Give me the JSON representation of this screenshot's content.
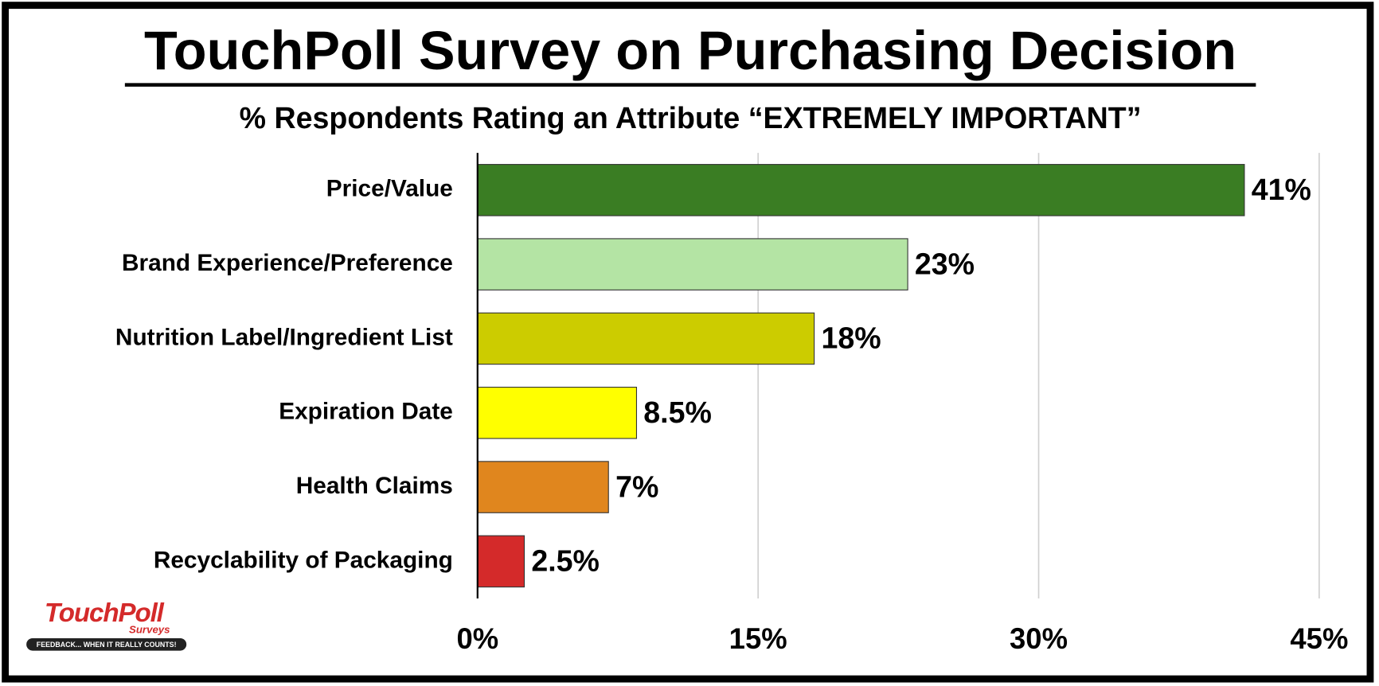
{
  "chart_data": {
    "type": "bar",
    "orientation": "horizontal",
    "title": "TouchPoll Survey on Purchasing Decision",
    "subtitle": "% Respondents Rating an Attribute “EXTREMELY IMPORTANT”",
    "categories": [
      "Price/Value",
      "Brand Experience/Preference",
      "Nutrition Label/Ingredient List",
      "Expiration Date",
      "Health Claims",
      "Recyclability of Packaging"
    ],
    "values": [
      41,
      23,
      18,
      8.5,
      7,
      2.5
    ],
    "value_labels": [
      "41%",
      "23%",
      "18%",
      "8.5%",
      "7%",
      "2.5%"
    ],
    "colors": [
      "#3a7d23",
      "#b4e4a4",
      "#cccc00",
      "#ffff00",
      "#e0861e",
      "#d42a2a"
    ],
    "xlim": [
      0,
      45
    ],
    "xticks": [
      {
        "value": 0,
        "label": "0%"
      },
      {
        "value": 15,
        "label": "15%"
      },
      {
        "value": 30,
        "label": "30%"
      },
      {
        "value": 45,
        "label": "45%"
      }
    ],
    "grid": true
  },
  "logo": {
    "name": "TouchPoll",
    "sub": "Surveys",
    "tagline": "FEEDBACK... WHEN IT REALLY COUNTS!"
  }
}
